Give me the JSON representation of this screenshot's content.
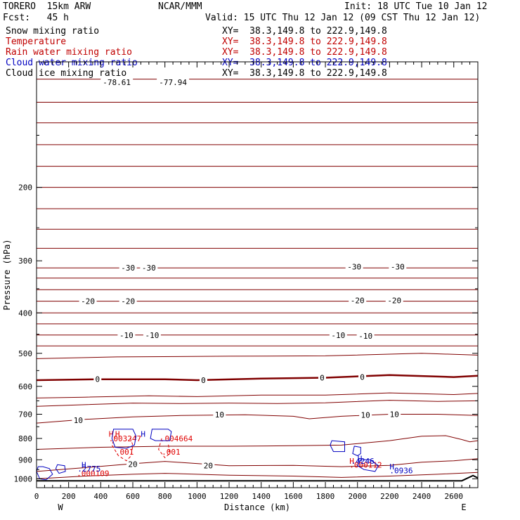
{
  "header": {
    "model": "TORERO  15km ARW",
    "center": "NCAR/MMM",
    "init": "Init: 18 UTC Tue 10 Jan 12",
    "fcst": "Fcst:   45 h",
    "valid": "Valid: 15 UTC Thu 12 Jan 12 (09 CST Thu 12 Jan 12)"
  },
  "fields": [
    {
      "name": "Snow mixing ratio",
      "xy": "XY=  38.3,149.8 to 222.9,149.8",
      "color": "#000000"
    },
    {
      "name": "Temperature",
      "xy": "XY=  38.3,149.8 to 222.9,149.8",
      "color": "#c00000"
    },
    {
      "name": "Rain water mixing ratio",
      "xy": "XY=  38.3,149.8 to 222.9,149.8",
      "color": "#c00000"
    },
    {
      "name": "Cloud water mixing ratio",
      "xy": "XY=  38.3,149.8 to 222.9,149.8",
      "color": "#0000c0"
    },
    {
      "name": "Cloud ice mixing ratio",
      "xy": "XY=  38.3,149.8 to 222.9,149.8",
      "color": "#000000"
    }
  ],
  "chart_data": {
    "type": "line",
    "xlabel": "Distance (km)",
    "ylabel": "Pressure (hPa)",
    "xlim": [
      0,
      2750
    ],
    "ylim": [
      1050,
      100
    ],
    "y_scale": "log",
    "x_ticks": [
      0,
      200,
      400,
      600,
      800,
      1000,
      1200,
      1400,
      1600,
      1800,
      2000,
      2200,
      2400,
      2600
    ],
    "y_ticks": [
      200,
      300,
      400,
      500,
      600,
      700,
      800,
      900,
      1000
    ],
    "end_labels": {
      "left": "W",
      "right": "E"
    },
    "colors": {
      "temperature": "#800000",
      "rain": "#e00000",
      "cloud_water": "#0000c0",
      "terrain": "#000000"
    },
    "isotherms": [
      {
        "label": "",
        "points": [
          [
            0,
            110
          ],
          [
            2750,
            110
          ]
        ]
      },
      {
        "label": "",
        "points": [
          [
            0,
            125
          ],
          [
            2750,
            125
          ]
        ]
      },
      {
        "label": "",
        "points": [
          [
            0,
            140
          ],
          [
            2750,
            140
          ]
        ]
      },
      {
        "label": "",
        "points": [
          [
            0,
            158
          ],
          [
            2750,
            158
          ]
        ]
      },
      {
        "label": "",
        "points": [
          [
            0,
            178
          ],
          [
            2750,
            178
          ]
        ]
      },
      {
        "label": "",
        "points": [
          [
            0,
            200
          ],
          [
            2750,
            200
          ]
        ]
      },
      {
        "label": "",
        "points": [
          [
            0,
            225
          ],
          [
            2750,
            225
          ]
        ]
      },
      {
        "label": "",
        "points": [
          [
            0,
            252
          ],
          [
            2750,
            252
          ]
        ]
      },
      {
        "label": "",
        "points": [
          [
            0,
            280
          ],
          [
            2750,
            280
          ]
        ]
      },
      {
        "label": "-30",
        "points": [
          [
            0,
            312
          ],
          [
            2750,
            312
          ]
        ]
      },
      {
        "label": "",
        "points": [
          [
            0,
            330
          ],
          [
            2750,
            330
          ]
        ]
      },
      {
        "label": "",
        "points": [
          [
            0,
            352
          ],
          [
            2750,
            352
          ]
        ]
      },
      {
        "label": "-20",
        "points": [
          [
            0,
            375
          ],
          [
            2750,
            375
          ]
        ]
      },
      {
        "label": "",
        "points": [
          [
            0,
            400
          ],
          [
            2750,
            400
          ]
        ]
      },
      {
        "label": "",
        "points": [
          [
            0,
            425
          ],
          [
            2750,
            425
          ]
        ]
      },
      {
        "label": "-10",
        "points": [
          [
            0,
            452
          ],
          [
            2750,
            452
          ]
        ]
      },
      {
        "label": "",
        "points": [
          [
            0,
            480
          ],
          [
            2750,
            480
          ]
        ]
      },
      {
        "label": "",
        "points": [
          [
            0,
            515
          ],
          [
            500,
            510
          ],
          [
            1200,
            508
          ],
          [
            1800,
            507
          ],
          [
            2400,
            500
          ],
          [
            2750,
            505
          ]
        ]
      },
      {
        "label": "0",
        "points": [
          [
            0,
            580
          ],
          [
            400,
            577
          ],
          [
            800,
            577
          ],
          [
            1000,
            580
          ],
          [
            1400,
            575
          ],
          [
            1800,
            572
          ],
          [
            2200,
            564
          ],
          [
            2600,
            570
          ],
          [
            2750,
            566
          ]
        ]
      },
      {
        "label": "",
        "points": [
          [
            0,
            640
          ],
          [
            300,
            637
          ],
          [
            700,
            632
          ],
          [
            1000,
            635
          ],
          [
            1400,
            630
          ],
          [
            1800,
            630
          ],
          [
            2200,
            622
          ],
          [
            2600,
            628
          ],
          [
            2750,
            624
          ]
        ]
      },
      {
        "label": "",
        "points": [
          [
            0,
            670
          ],
          [
            300,
            664
          ],
          [
            600,
            658
          ],
          [
            900,
            660
          ],
          [
            1200,
            658
          ],
          [
            1500,
            660
          ],
          [
            1800,
            657
          ],
          [
            2200,
            648
          ],
          [
            2500,
            652
          ],
          [
            2750,
            650
          ]
        ]
      },
      {
        "label": "10",
        "points": [
          [
            0,
            735
          ],
          [
            300,
            720
          ],
          [
            600,
            710
          ],
          [
            900,
            705
          ],
          [
            1300,
            702
          ],
          [
            1600,
            708
          ],
          [
            1700,
            718
          ],
          [
            1900,
            708
          ],
          [
            2200,
            700
          ],
          [
            2500,
            700
          ],
          [
            2750,
            705
          ]
        ]
      },
      {
        "label": "",
        "points": [
          [
            0,
            850
          ],
          [
            400,
            840
          ],
          [
            800,
            835
          ],
          [
            1200,
            835
          ],
          [
            1600,
            833
          ],
          [
            1900,
            830
          ],
          [
            2200,
            810
          ],
          [
            2400,
            790
          ],
          [
            2550,
            788
          ],
          [
            2650,
            805
          ],
          [
            2700,
            815
          ],
          [
            2750,
            810
          ]
        ]
      },
      {
        "label": "20",
        "points": [
          [
            0,
            960
          ],
          [
            300,
            940
          ],
          [
            600,
            920
          ],
          [
            800,
            908
          ],
          [
            1200,
            930
          ],
          [
            1600,
            928
          ],
          [
            1900,
            935
          ],
          [
            2200,
            928
          ],
          [
            2400,
            912
          ],
          [
            2600,
            905
          ],
          [
            2750,
            895
          ]
        ]
      },
      {
        "label": "",
        "points": [
          [
            0,
            1000
          ],
          [
            300,
            985
          ],
          [
            600,
            975
          ],
          [
            800,
            970
          ],
          [
            1200,
            980
          ],
          [
            1600,
            985
          ],
          [
            1900,
            992
          ],
          [
            2200,
            985
          ],
          [
            2500,
            975
          ],
          [
            2750,
            965
          ]
        ]
      }
    ],
    "isotherm_labels": [
      {
        "text": "-78.61",
        "x": 500,
        "y": 112
      },
      {
        "text": "-77.94",
        "x": 850,
        "y": 112
      },
      {
        "text": "-30",
        "x": 570,
        "y": 312
      },
      {
        "text": "-30",
        "x": 700,
        "y": 312
      },
      {
        "text": "-30",
        "x": 1980,
        "y": 310
      },
      {
        "text": "-30",
        "x": 2250,
        "y": 310
      },
      {
        "text": "-20",
        "x": 320,
        "y": 375
      },
      {
        "text": "-20",
        "x": 570,
        "y": 375
      },
      {
        "text": "-20",
        "x": 2000,
        "y": 373
      },
      {
        "text": "-20",
        "x": 2230,
        "y": 373
      },
      {
        "text": "-10",
        "x": 560,
        "y": 452
      },
      {
        "text": "-10",
        "x": 720,
        "y": 452
      },
      {
        "text": "-10",
        "x": 1880,
        "y": 452
      },
      {
        "text": "-10",
        "x": 2050,
        "y": 454
      },
      {
        "text": "0",
        "x": 380,
        "y": 577
      },
      {
        "text": "0",
        "x": 1040,
        "y": 580
      },
      {
        "text": "0",
        "x": 1780,
        "y": 572
      },
      {
        "text": "0",
        "x": 2030,
        "y": 570
      },
      {
        "text": "10",
        "x": 260,
        "y": 723
      },
      {
        "text": "10",
        "x": 1140,
        "y": 702
      },
      {
        "text": "10",
        "x": 2050,
        "y": 703
      },
      {
        "text": "10",
        "x": 2230,
        "y": 700
      },
      {
        "text": "20",
        "x": 600,
        "y": 922
      },
      {
        "text": "20",
        "x": 1070,
        "y": 930
      }
    ],
    "rain_contours": [
      {
        "points": [
          [
            490,
            790
          ],
          [
            470,
            830
          ],
          [
            510,
            880
          ],
          [
            560,
            905
          ],
          [
            590,
            880
          ],
          [
            600,
            830
          ],
          [
            580,
            790
          ]
        ]
      },
      {
        "points": [
          [
            780,
            800
          ],
          [
            760,
            850
          ],
          [
            800,
            890
          ],
          [
            830,
            870
          ],
          [
            820,
            820
          ]
        ]
      }
    ],
    "rain_labels": [
      {
        "text": "H",
        "x": 450,
        "y": 780,
        "kind": "max"
      },
      {
        "text": "H",
        "x": 490,
        "y": 780,
        "kind": "max"
      },
      {
        "text": ".003247",
        "x": 450,
        "y": 800,
        "kind": "value"
      },
      {
        "text": ".001",
        "x": 490,
        "y": 862,
        "kind": "value"
      },
      {
        "text": ".004664",
        "x": 770,
        "y": 800,
        "kind": "value"
      },
      {
        "text": ".001",
        "x": 780,
        "y": 862,
        "kind": "value"
      },
      {
        "text": "H",
        "x": 1950,
        "y": 906,
        "kind": "max"
      },
      {
        "text": ".000112",
        "x": 1950,
        "y": 925,
        "kind": "value"
      },
      {
        "text": ".000109",
        "x": 250,
        "y": 970,
        "kind": "value"
      }
    ],
    "cloud_water_contours": [
      {
        "points": [
          [
            480,
            760
          ],
          [
            470,
            800
          ],
          [
            490,
            840
          ],
          [
            560,
            845
          ],
          [
            610,
            830
          ],
          [
            620,
            790
          ],
          [
            600,
            760
          ]
        ]
      },
      {
        "points": [
          [
            720,
            760
          ],
          [
            710,
            800
          ],
          [
            740,
            810
          ],
          [
            830,
            810
          ],
          [
            840,
            770
          ],
          [
            820,
            760
          ]
        ]
      },
      {
        "points": [
          [
            1840,
            810
          ],
          [
            1830,
            830
          ],
          [
            1850,
            860
          ],
          [
            1920,
            860
          ],
          [
            1920,
            815
          ]
        ]
      },
      {
        "points": [
          [
            1980,
            835
          ],
          [
            1970,
            870
          ],
          [
            2000,
            880
          ],
          [
            2020,
            870
          ],
          [
            2020,
            840
          ]
        ]
      },
      {
        "points": [
          [
            2020,
            900
          ],
          [
            2000,
            930
          ],
          [
            2040,
            950
          ],
          [
            2110,
            960
          ],
          [
            2130,
            930
          ],
          [
            2080,
            900
          ]
        ]
      },
      {
        "points": [
          [
            10,
            935
          ],
          [
            0,
            960
          ],
          [
            20,
            1000
          ],
          [
            60,
            1005
          ],
          [
            100,
            975
          ],
          [
            80,
            945
          ],
          [
            40,
            935
          ]
        ]
      },
      {
        "points": [
          [
            130,
            925
          ],
          [
            120,
            945
          ],
          [
            140,
            970
          ],
          [
            180,
            960
          ],
          [
            175,
            930
          ]
        ]
      }
    ],
    "cloud_water_labels": [
      {
        "text": "H",
        "x": 650,
        "y": 780,
        "kind": "max"
      },
      {
        "text": "H",
        "x": 2000,
        "y": 893,
        "kind": "max"
      },
      {
        "text": ".4246",
        "x": 1960,
        "y": 906,
        "kind": "value"
      },
      {
        "text": "H",
        "x": 2200,
        "y": 935,
        "kind": "max"
      },
      {
        "text": ".0936",
        "x": 2200,
        "y": 955,
        "kind": "value"
      },
      {
        "text": "H",
        "x": 280,
        "y": 925,
        "kind": "max"
      },
      {
        "text": ".2775",
        "x": 255,
        "y": 945,
        "kind": "value"
      }
    ],
    "terrain": [
      [
        0,
        1011
      ],
      [
        1000,
        1011
      ],
      [
        2000,
        1011
      ],
      [
        2650,
        1011
      ],
      [
        2720,
        982
      ],
      [
        2750,
        995
      ]
    ]
  }
}
